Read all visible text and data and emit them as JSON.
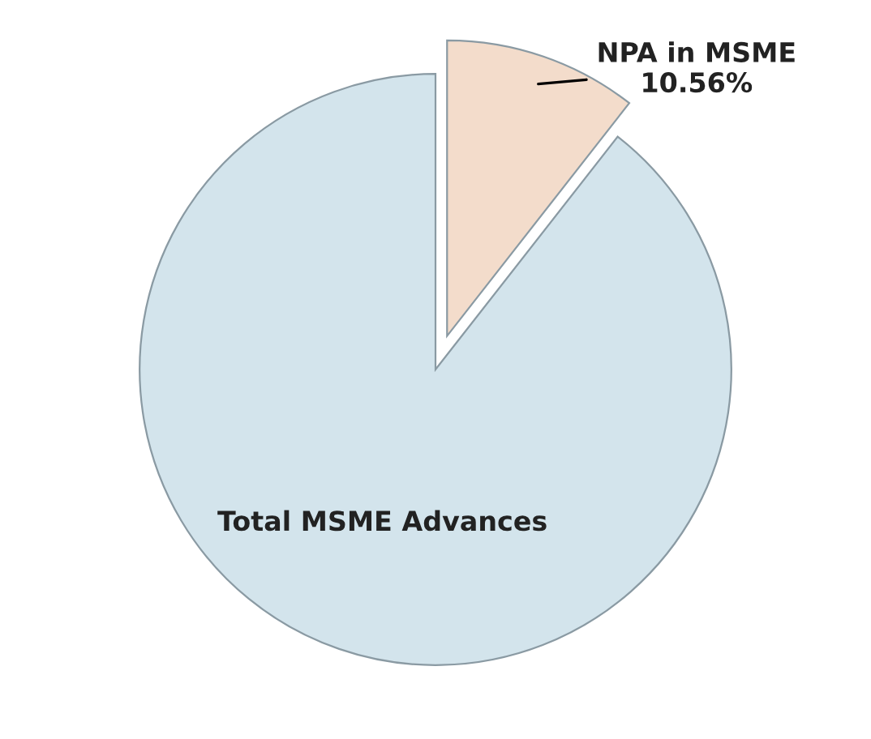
{
  "chart_data": {
    "type": "pie",
    "categories": [
      "NPA in MSME",
      "Total MSME Advances"
    ],
    "values": [
      10.56,
      89.44
    ],
    "colors": [
      "#f3dccb",
      "#d3e4ec"
    ],
    "value_labels": [
      "10.56%",
      null
    ]
  }
}
